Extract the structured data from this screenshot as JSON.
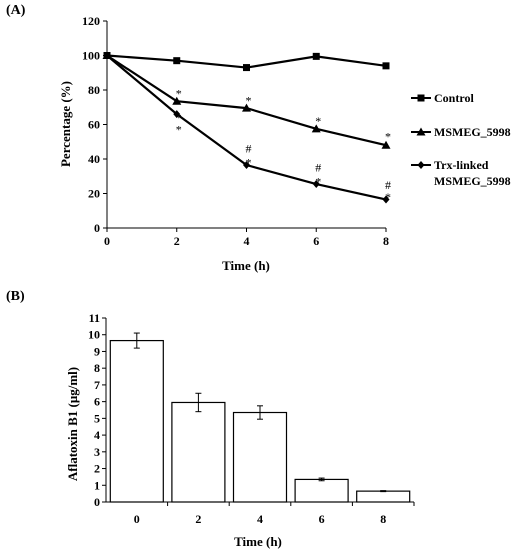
{
  "chart_data": [
    {
      "type": "line",
      "panel_label": "(A)",
      "xlabel": "Time (h)",
      "ylabel": "Percentage (%)",
      "x": [
        0,
        2,
        4,
        6,
        8
      ],
      "xlim": [
        0,
        8
      ],
      "ylim": [
        0,
        120
      ],
      "xticks": [
        "0",
        "2",
        "4",
        "6",
        "8"
      ],
      "yticks": [
        "0",
        "20",
        "40",
        "60",
        "80",
        "100",
        "120"
      ],
      "grid": false,
      "legend": "right",
      "series": [
        {
          "name": "Control",
          "marker": "square",
          "values": [
            100,
            97,
            93,
            99.5,
            94
          ]
        },
        {
          "name": "MSMEG_5998",
          "marker": "triangle",
          "values": [
            100,
            73.5,
            69.5,
            57.5,
            48
          ]
        },
        {
          "name": "Trx-linked MSMEG_5998",
          "name_lines": [
            "Trx-linked",
            "MSMEG_5998"
          ],
          "marker": "diamond",
          "values": [
            100,
            66,
            36.5,
            25.5,
            16.5
          ]
        }
      ],
      "annotations": [
        {
          "text": "*",
          "x": 2,
          "y": 78
        },
        {
          "text": "*",
          "x": 2,
          "y": 64
        },
        {
          "text": "*",
          "x": 2,
          "y": 57
        },
        {
          "text": "*",
          "x": 4,
          "y": 74
        },
        {
          "text": "*",
          "x": 6,
          "y": 62
        },
        {
          "text": "*",
          "x": 8,
          "y": 53
        },
        {
          "text": "#",
          "x": 4,
          "y": 46
        },
        {
          "text": "*",
          "x": 4,
          "y": 38
        },
        {
          "text": "#",
          "x": 6,
          "y": 35
        },
        {
          "text": "*",
          "x": 6,
          "y": 27
        },
        {
          "text": "#",
          "x": 8,
          "y": 25
        },
        {
          "text": "*",
          "x": 8,
          "y": 18
        }
      ]
    },
    {
      "type": "bar",
      "panel_label": "(B)",
      "xlabel": "Time (h)",
      "ylabel": "Aflatoxin B1 (μg/ml)",
      "categories": [
        "0",
        "2",
        "4",
        "6",
        "8"
      ],
      "values": [
        9.65,
        5.95,
        5.35,
        1.35,
        0.65
      ],
      "errors": [
        0.45,
        0.55,
        0.4,
        0.08,
        0.03
      ],
      "ylim": [
        0,
        11
      ],
      "yticks": [
        "0",
        "1",
        "2",
        "3",
        "4",
        "5",
        "6",
        "7",
        "8",
        "9",
        "10",
        "11"
      ],
      "bar_color": "#ffffff",
      "grid": false
    }
  ]
}
